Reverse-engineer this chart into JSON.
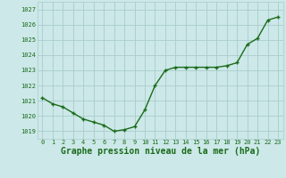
{
  "x": [
    0,
    1,
    2,
    3,
    4,
    5,
    6,
    7,
    8,
    9,
    10,
    11,
    12,
    13,
    14,
    15,
    16,
    17,
    18,
    19,
    20,
    21,
    22,
    23
  ],
  "y": [
    1021.2,
    1020.8,
    1020.6,
    1020.2,
    1019.8,
    1019.6,
    1019.4,
    1019.0,
    1019.1,
    1019.3,
    1020.4,
    1022.0,
    1023.0,
    1023.2,
    1023.2,
    1023.2,
    1023.2,
    1023.2,
    1023.3,
    1023.5,
    1024.7,
    1025.1,
    1026.3,
    1026.5
  ],
  "line_color": "#1a6b1a",
  "marker_color": "#1a6b1a",
  "bg_color": "#cce8e8",
  "grid_color": "#aacccc",
  "xlabel": "Graphe pression niveau de la mer (hPa)",
  "xlabel_color": "#1a6b1a",
  "ylabel_ticks": [
    1019,
    1020,
    1021,
    1022,
    1023,
    1024,
    1025,
    1026,
    1027
  ],
  "ylim": [
    1018.5,
    1027.5
  ],
  "xlim": [
    -0.5,
    23.5
  ],
  "tick_color": "#1a6b1a",
  "tick_fontsize": 5.0,
  "xlabel_fontsize": 7.0,
  "linewidth": 1.0,
  "markersize": 3.5,
  "markeredgewidth": 1.0
}
